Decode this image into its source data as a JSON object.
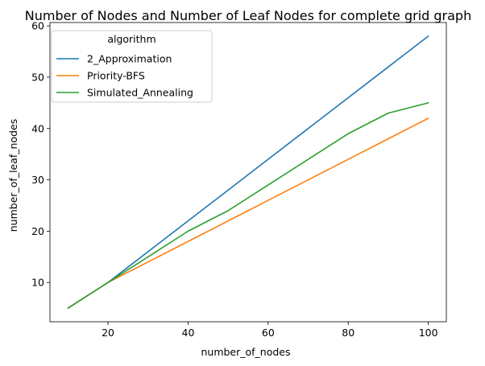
{
  "chart_data": {
    "type": "line",
    "title": "Number of Nodes and Number of Leaf Nodes for complete grid graph",
    "xlabel": "number_of_nodes",
    "ylabel": "number_of_leaf_nodes",
    "xlim": [
      5.5,
      104.5
    ],
    "ylim": [
      2.35,
      60.65
    ],
    "xticks": [
      20,
      40,
      60,
      80,
      100
    ],
    "yticks": [
      10,
      20,
      30,
      40,
      50,
      60
    ],
    "grid": false,
    "legend": {
      "title": "algorithm",
      "placement": "top-left"
    },
    "series": [
      {
        "name": "2_Approximation",
        "color": "#1f77b4",
        "x": [
          10,
          20,
          30,
          40,
          50,
          60,
          70,
          80,
          90,
          100
        ],
        "values": [
          5,
          10,
          16,
          22,
          28,
          34,
          40,
          46,
          52,
          58
        ]
      },
      {
        "name": "Priority-BFS",
        "color": "#ff7f0e",
        "x": [
          10,
          20,
          30,
          40,
          50,
          60,
          70,
          80,
          90,
          100
        ],
        "values": [
          5,
          10,
          14,
          18,
          22,
          26,
          30,
          34,
          38,
          42
        ]
      },
      {
        "name": "Simulated_Annealing",
        "color": "#2ca02c",
        "x": [
          10,
          20,
          30,
          40,
          50,
          60,
          70,
          80,
          90,
          100
        ],
        "values": [
          5,
          10,
          15,
          20,
          24,
          29,
          34,
          39,
          43,
          45
        ]
      }
    ]
  }
}
